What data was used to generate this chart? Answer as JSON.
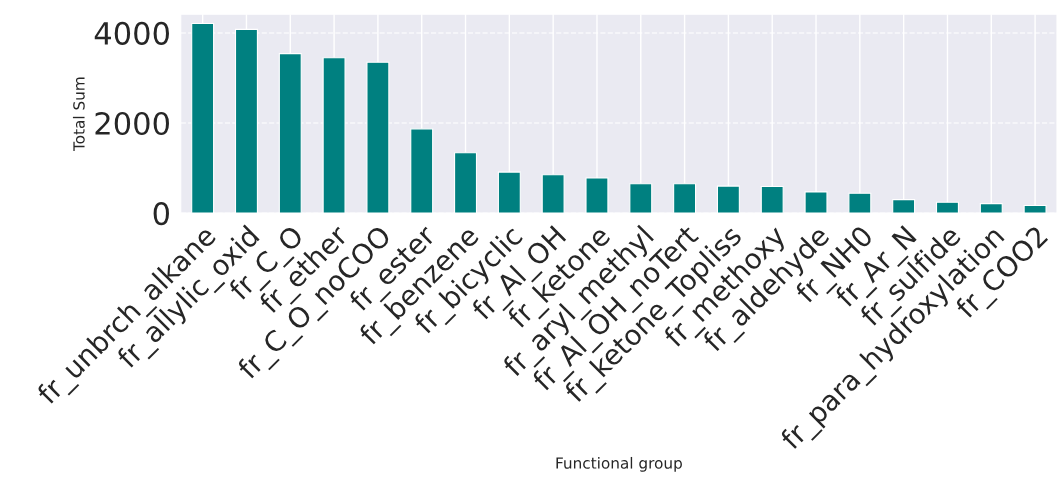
{
  "chart_data": {
    "type": "bar",
    "xlabel": "Functional group",
    "ylabel": "Total Sum",
    "categories": [
      "fr_unbrch_alkane",
      "fr_allylic_oxid",
      "fr_C_O",
      "fr_ether",
      "fr_C_O_noCOO",
      "fr_ester",
      "fr_benzene",
      "fr_bicyclic",
      "fr_Al_OH",
      "fr_ketone",
      "fr_aryl_methyl",
      "fr_Al_OH_noTert",
      "fr_ketone_Topliss",
      "fr_methoxy",
      "fr_aldehyde",
      "fr_NH0",
      "fr_Ar_N",
      "fr_sulfide",
      "fr_para_hydroxylation",
      "fr_COO2"
    ],
    "values": [
      4210,
      4080,
      3540,
      3450,
      3350,
      1870,
      1340,
      910,
      850,
      780,
      650,
      650,
      600,
      590,
      470,
      440,
      300,
      240,
      210,
      170
    ],
    "color": "#008080",
    "ylim": [
      0,
      4415
    ],
    "yticks": [
      0,
      2000,
      4000
    ],
    "grid": true,
    "legend": false
  }
}
